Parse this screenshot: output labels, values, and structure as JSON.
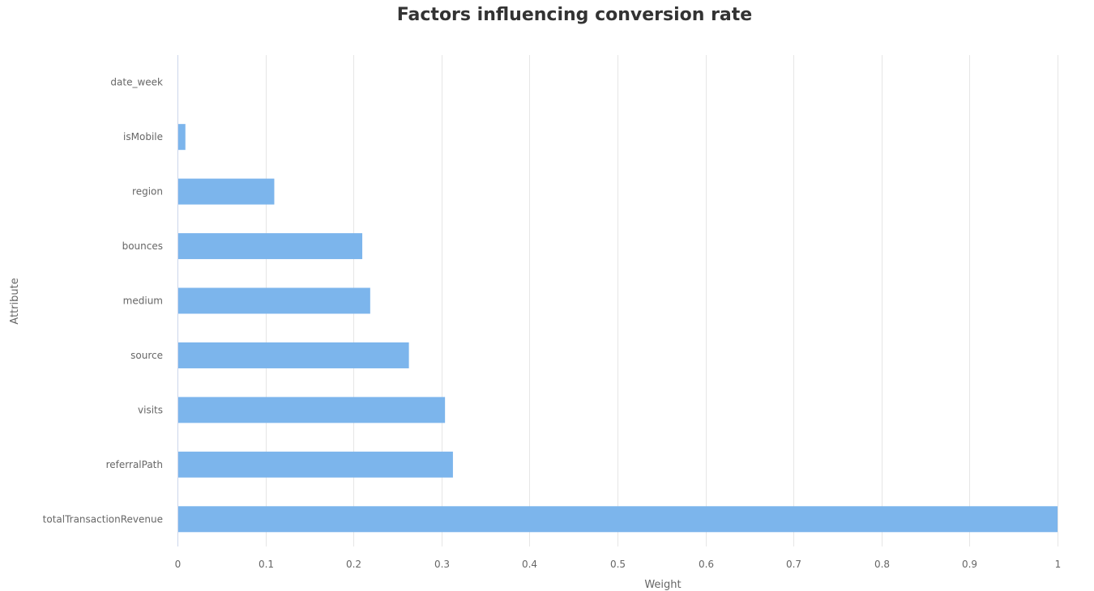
{
  "chart_data": {
    "type": "bar",
    "orientation": "horizontal",
    "title": "Factors influencing conversion rate",
    "xlabel": "Weight",
    "ylabel": "Attribute",
    "xlim": [
      0,
      1
    ],
    "x_ticks": [
      "0",
      "0.1",
      "0.2",
      "0.3",
      "0.4",
      "0.5",
      "0.6",
      "0.7",
      "0.8",
      "0.9",
      "1"
    ],
    "categories": [
      "date_week",
      "isMobile",
      "region",
      "bounces",
      "medium",
      "source",
      "visits",
      "referralPath",
      "totalTransactionRevenue"
    ],
    "values": [
      0.0,
      0.009,
      0.11,
      0.21,
      0.219,
      0.263,
      0.304,
      0.313,
      1.0
    ],
    "bar_color": "#7cb5ec",
    "grid": true,
    "legend": "none"
  }
}
